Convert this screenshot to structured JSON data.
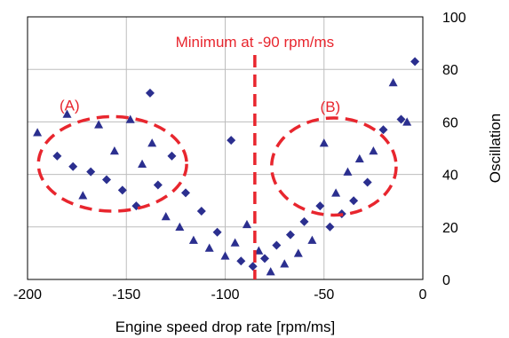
{
  "chart_data": {
    "type": "scatter",
    "xlabel": "Engine speed drop rate [rpm/ms]",
    "ylabel": "Oscillation",
    "xlim": [
      -200,
      0
    ],
    "ylim": [
      0,
      100
    ],
    "x_ticks": [
      "-200",
      "-150",
      "-100",
      "-50",
      "0"
    ],
    "y_ticks": [
      "0",
      "20",
      "40",
      "60",
      "80",
      "100"
    ],
    "y_axis_side": "right",
    "grid": true,
    "colors": {
      "points": "#2b2f8f",
      "annotation": "#e8262e",
      "grid": "#bdbdbd"
    },
    "annotations": {
      "minimum_label": "Minimum at -90 rpm/ms",
      "minimum_x": -85,
      "region_a": {
        "label": "(A)",
        "center_x": -157,
        "center_y": 44,
        "width_x": 75,
        "height_y": 36
      },
      "region_b": {
        "label": "(B)",
        "center_x": -45,
        "center_y": 43,
        "width_x": 63,
        "height_y": 37
      }
    },
    "series": [
      {
        "marker": "mixed-triangle-diamond",
        "points": [
          [
            -195,
            56
          ],
          [
            -185,
            47
          ],
          [
            -180,
            63
          ],
          [
            -177,
            43
          ],
          [
            -172,
            32
          ],
          [
            -168,
            41
          ],
          [
            -164,
            59
          ],
          [
            -160,
            38
          ],
          [
            -156,
            49
          ],
          [
            -152,
            34
          ],
          [
            -148,
            61
          ],
          [
            -145,
            28
          ],
          [
            -142,
            44
          ],
          [
            -138,
            71
          ],
          [
            -137,
            52
          ],
          [
            -134,
            36
          ],
          [
            -130,
            24
          ],
          [
            -127,
            47
          ],
          [
            -123,
            20
          ],
          [
            -120,
            33
          ],
          [
            -116,
            15
          ],
          [
            -112,
            26
          ],
          [
            -108,
            12
          ],
          [
            -104,
            18
          ],
          [
            -100,
            9
          ],
          [
            -97,
            53
          ],
          [
            -95,
            14
          ],
          [
            -92,
            7
          ],
          [
            -89,
            21
          ],
          [
            -86,
            5
          ],
          [
            -83,
            11
          ],
          [
            -80,
            8
          ],
          [
            -77,
            3
          ],
          [
            -74,
            13
          ],
          [
            -70,
            6
          ],
          [
            -67,
            17
          ],
          [
            -63,
            10
          ],
          [
            -60,
            22
          ],
          [
            -56,
            15
          ],
          [
            -52,
            28
          ],
          [
            -50,
            52
          ],
          [
            -47,
            20
          ],
          [
            -44,
            33
          ],
          [
            -41,
            25
          ],
          [
            -38,
            41
          ],
          [
            -35,
            30
          ],
          [
            -32,
            46
          ],
          [
            -28,
            37
          ],
          [
            -25,
            49
          ],
          [
            -20,
            57
          ],
          [
            -15,
            75
          ],
          [
            -11,
            61
          ],
          [
            -8,
            60
          ],
          [
            -4,
            83
          ]
        ]
      }
    ]
  }
}
